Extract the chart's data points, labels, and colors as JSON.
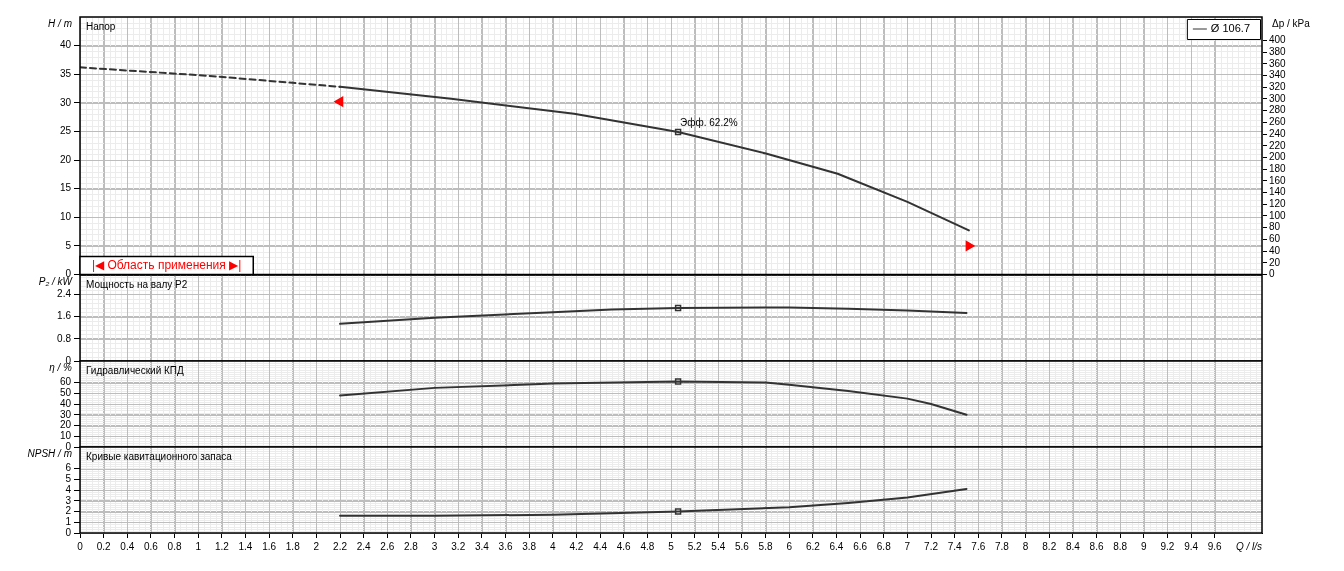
{
  "chart_data": [
    {
      "type": "line",
      "title": "Напор",
      "ylabel": "H / m",
      "y2label": "Δp / kPa",
      "xlim": [
        0,
        10
      ],
      "xticks": [
        0,
        0.2,
        0.4,
        0.6,
        0.8,
        1,
        1.2,
        1.4,
        1.6,
        1.8,
        2,
        2.2,
        2.4,
        2.6,
        2.8,
        3,
        3.2,
        3.4,
        3.6,
        3.8,
        4,
        4.2,
        4.4,
        4.6,
        4.8,
        5,
        5.2,
        5.4,
        5.6,
        5.8,
        6,
        6.2,
        6.4,
        6.6,
        6.8,
        7,
        7.2,
        7.4,
        7.6,
        7.8,
        8,
        8.2,
        8.4,
        8.6,
        8.8,
        9,
        9.2,
        9.4,
        9.6
      ],
      "ylim": [
        0,
        45
      ],
      "yticks": [
        0,
        5,
        10,
        15,
        20,
        25,
        30,
        35,
        40
      ],
      "y2lim": [
        0,
        440
      ],
      "y2ticks": [
        0,
        20,
        40,
        60,
        80,
        100,
        120,
        140,
        160,
        180,
        200,
        220,
        240,
        260,
        280,
        300,
        320,
        340,
        360,
        380,
        400
      ],
      "grid": true,
      "legend": "top right",
      "tick_labels": "y",
      "series": [
        {
          "name": "Ø 106.7",
          "color": "#333333",
          "x": [
            2.2,
            3.14,
            4.18,
            5.06,
            5.81,
            6.41,
            7.0,
            7.52
          ],
          "values": [
            32.8,
            30.7,
            28.1,
            24.9,
            21.1,
            17.6,
            12.7,
            7.7
          ]
        },
        {
          "color": "#333333",
          "line_style": "dashed",
          "x": [
            0,
            1.1,
            2.2
          ],
          "values": [
            36.2,
            34.7,
            32.8
          ]
        },
        {
          "type": "scatter",
          "marker": "square",
          "color": "#333333",
          "x": [
            5.06
          ],
          "values": [
            24.9
          ]
        },
        {
          "type": "scatter",
          "marker": "triangle",
          "color": "#ff0000",
          "x": [
            2.2,
            7.52
          ],
          "values": [
            30.2,
            5
          ]
        }
      ],
      "annotations": [
        {
          "text": "Эфф. 62.2%",
          "x": 5.06,
          "y": 24.9
        },
        "|◀ Область применения ▶|"
      ]
    },
    {
      "type": "line",
      "title": "Мощность на валу P2",
      "ylabel": "P₂ / kW",
      "xlim": [
        0,
        10
      ],
      "xticks": [
        0,
        0.2,
        0.4,
        0.6,
        0.8,
        1,
        1.2,
        1.4,
        1.6,
        1.8,
        2,
        2.2,
        2.4,
        2.6,
        2.8,
        3,
        3.2,
        3.4,
        3.6,
        3.8,
        4,
        4.2,
        4.4,
        4.6,
        4.8,
        5,
        5.2,
        5.4,
        5.6,
        5.8,
        6,
        6.2,
        6.4,
        6.6,
        6.8,
        7,
        7.2,
        7.4,
        7.6,
        7.8,
        8,
        8.2,
        8.4,
        8.6,
        8.8,
        9,
        9.2,
        9.4,
        9.6
      ],
      "ylim": [
        0,
        3.1
      ],
      "yticks": [
        0,
        0.8,
        1.6,
        2.4
      ],
      "grid": true,
      "tick_labels": "y",
      "series": [
        {
          "color": "#333333",
          "x": [
            2.2,
            3,
            4,
            4.5,
            5.06,
            6,
            6.5,
            7,
            7.5
          ],
          "values": [
            1.34,
            1.56,
            1.76,
            1.86,
            1.91,
            1.93,
            1.88,
            1.82,
            1.73
          ]
        },
        {
          "type": "scatter",
          "marker": "square",
          "color": "#333333",
          "x": [
            5.06
          ],
          "values": [
            1.91
          ]
        }
      ]
    },
    {
      "type": "line",
      "title": "Гидравлический КПД",
      "ylabel": "η / %",
      "xlim": [
        0,
        10
      ],
      "xticks": [
        0,
        0.2,
        0.4,
        0.6,
        0.8,
        1,
        1.2,
        1.4,
        1.6,
        1.8,
        2,
        2.2,
        2.4,
        2.6,
        2.8,
        3,
        3.2,
        3.4,
        3.6,
        3.8,
        4,
        4.2,
        4.4,
        4.6,
        4.8,
        5,
        5.2,
        5.4,
        5.6,
        5.8,
        6,
        6.2,
        6.4,
        6.6,
        6.8,
        7,
        7.2,
        7.4,
        7.6,
        7.8,
        8,
        8.2,
        8.4,
        8.6,
        8.8,
        9,
        9.2,
        9.4,
        9.6
      ],
      "ylim": [
        0,
        80
      ],
      "yticks": [
        0,
        10,
        20,
        30,
        40,
        50,
        60
      ],
      "grid": true,
      "tick_labels": "y",
      "series": [
        {
          "color": "#333333",
          "x": [
            2.2,
            3,
            4,
            5.06,
            5.8,
            6,
            6.5,
            7,
            7.2,
            7.5
          ],
          "values": [
            48,
            55,
            59,
            61,
            60,
            58,
            52,
            45,
            40,
            30
          ]
        },
        {
          "type": "scatter",
          "marker": "square",
          "color": "#333333",
          "x": [
            5.06
          ],
          "values": [
            61
          ]
        }
      ]
    },
    {
      "type": "line",
      "title": "Кривые кавитационного запаса",
      "ylabel": "NPSH / m",
      "xlabel": "Q / l/s",
      "xlim": [
        0,
        10
      ],
      "xticks": [
        0,
        0.2,
        0.4,
        0.6,
        0.8,
        1,
        1.2,
        1.4,
        1.6,
        1.8,
        2,
        2.2,
        2.4,
        2.6,
        2.8,
        3,
        3.2,
        3.4,
        3.6,
        3.8,
        4,
        4.2,
        4.4,
        4.6,
        4.8,
        5,
        5.2,
        5.4,
        5.6,
        5.8,
        6,
        6.2,
        6.4,
        6.6,
        6.8,
        7,
        7.2,
        7.4,
        7.6,
        7.8,
        8,
        8.2,
        8.4,
        8.6,
        8.8,
        9,
        9.2,
        9.4,
        9.6
      ],
      "ylim": [
        0,
        8
      ],
      "yticks": [
        0,
        1,
        2,
        3,
        4,
        5,
        6
      ],
      "grid": true,
      "series": [
        {
          "color": "#333333",
          "x": [
            2.2,
            3,
            4,
            5.06,
            6,
            6.5,
            7,
            7.5
          ],
          "values": [
            1.6,
            1.6,
            1.7,
            2.0,
            2.4,
            2.8,
            3.3,
            4.1
          ]
        },
        {
          "type": "scatter",
          "marker": "square",
          "color": "#333333",
          "x": [
            5.06
          ],
          "values": [
            2.0
          ]
        }
      ]
    }
  ]
}
